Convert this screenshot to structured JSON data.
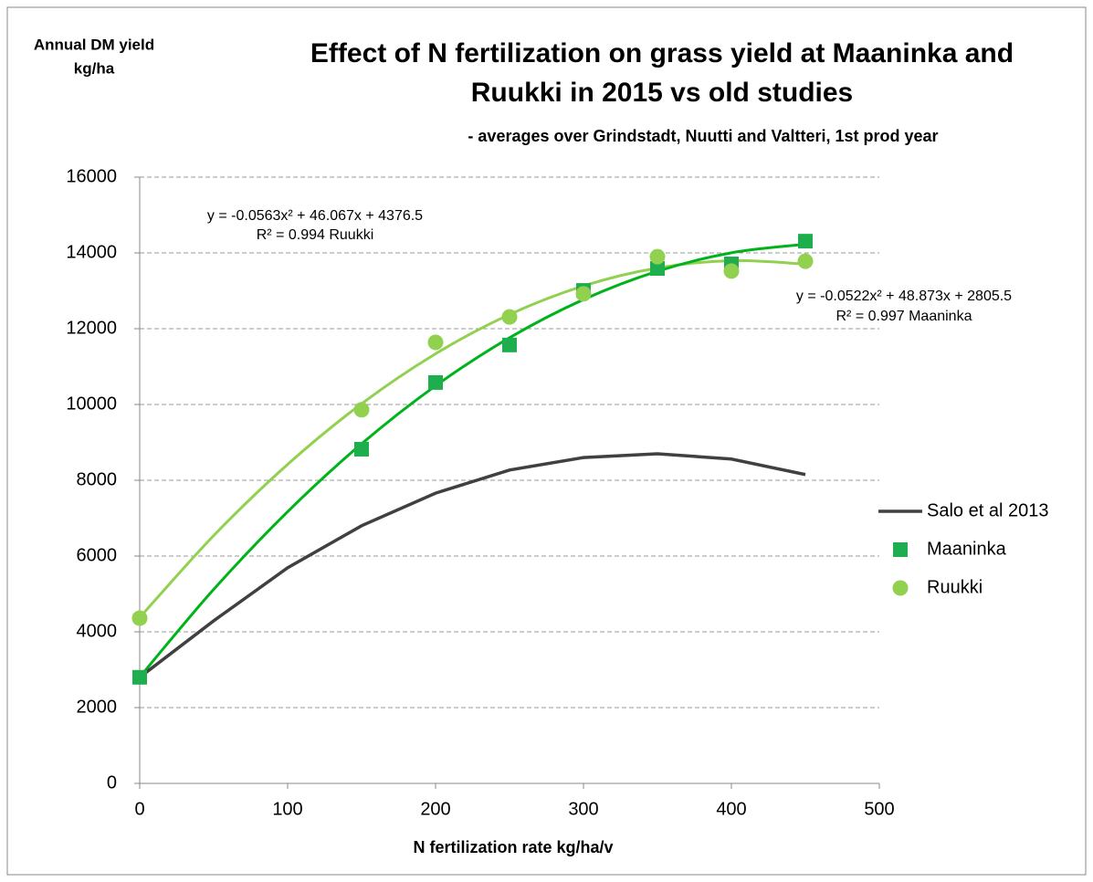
{
  "chart_data": {
    "type": "line",
    "title": [
      "Effect of N fertilization on grass yield at Maaninka and",
      "Ruukki in 2015 vs old studies"
    ],
    "subtitle": "- averages over Grindstadt, Nuutti and Valtteri, 1st prod year",
    "ylabel": [
      "Annual DM yield",
      "kg/ha"
    ],
    "xlabel": "N  fertilization rate kg/ha/v",
    "xlim": [
      0,
      500
    ],
    "xticks": [
      0,
      100,
      200,
      300,
      400,
      500
    ],
    "ylim": [
      0,
      16000
    ],
    "yticks": [
      0,
      2000,
      4000,
      6000,
      8000,
      10000,
      12000,
      14000,
      16000
    ],
    "grid": true,
    "legend": "right",
    "series": [
      {
        "name": "Salo et al 2013",
        "color": "#404040",
        "marker": "none",
        "x": [
          0,
          50,
          100,
          150,
          200,
          250,
          300,
          350,
          400,
          450
        ],
        "values": [
          2800,
          4290,
          5690,
          6800,
          7660,
          8270,
          8600,
          8700,
          8560,
          8150
        ]
      },
      {
        "name": "Maaninka",
        "color": "#1fae4e",
        "marker": "square",
        "x": [
          0,
          150,
          200,
          250,
          300,
          350,
          400,
          450
        ],
        "values": [
          2800,
          8820,
          10580,
          11570,
          13010,
          13590,
          13710,
          14310
        ]
      },
      {
        "name": "Ruukki",
        "color": "#92d050",
        "marker": "circle",
        "x": [
          0,
          150,
          200,
          250,
          300,
          350,
          400,
          450
        ],
        "values": [
          4360,
          9860,
          11640,
          12310,
          12920,
          13900,
          13520,
          13780
        ]
      }
    ],
    "trendlines": [
      {
        "color": "#92d050",
        "equation": "y = -0.0563x² + 46.067x + 4376.5",
        "r2": "R² = 0.994 Ruukki",
        "x": [
          0,
          50,
          100,
          150,
          200,
          250,
          300,
          350,
          400,
          450
        ],
        "values": [
          4377,
          6539,
          8420,
          10020,
          11338,
          12375,
          13130,
          13603,
          13795,
          13706
        ]
      },
      {
        "color": "#00b31a",
        "equation": "y = -0.0522x² + 48.873x + 2805.5",
        "r2": "R² = 0.997 Maaninka",
        "x": [
          0,
          50,
          100,
          150,
          200,
          250,
          300,
          350,
          400,
          450
        ],
        "values": [
          2806,
          5119,
          7171,
          8962,
          10492,
          11761,
          12769,
          13517,
          14003,
          14228
        ]
      }
    ]
  }
}
